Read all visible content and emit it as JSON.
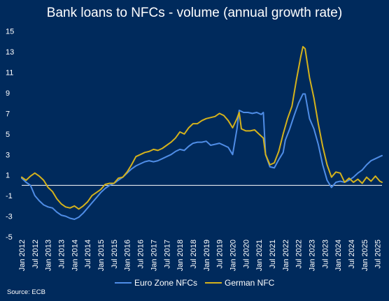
{
  "chart_data": {
    "type": "line",
    "title": "Bank loans to NFCs - volume (annual growth rate)",
    "source": "Source: ECB",
    "xlabel": "",
    "ylabel": "",
    "ylim": [
      -5,
      16
    ],
    "y_ticks": [
      "15",
      "13",
      "11",
      "9",
      "7",
      "5",
      "3",
      "1",
      "-1",
      "-3",
      "-5"
    ],
    "x_range": [
      "2012-01",
      "2025-09"
    ],
    "x_ticks": [
      "Jan 2012",
      "Jul 2012",
      "Jan 2013",
      "Jul 2013",
      "Jan 2014",
      "Jul 2014",
      "Jan 2015",
      "Jul 2015",
      "Jan 2016",
      "Jul 2016",
      "Jan 2017",
      "Jul 2017",
      "Jan 2018",
      "Jul 2018",
      "Jan 2019",
      "Jul 2019",
      "Jan 2020",
      "Jul 2020",
      "Jan 2021",
      "Jul 2021",
      "Jan 2022",
      "Jul 2022",
      "Jan 2023",
      "Jul 2023",
      "Jan 2024",
      "Jul 2024",
      "Jan 2025",
      "Jul 2025"
    ],
    "reference_line": 0,
    "legend_position": "bottom",
    "colors": {
      "Euro Zone NFCs": "#4f8de6",
      "German NFC": "#d4b21c",
      "reference_line": "#ffffff"
    },
    "series": [
      {
        "name": "Euro Zone NFCs",
        "points": [
          [
            "2012-01",
            0.7
          ],
          [
            "2012-03",
            0.3
          ],
          [
            "2012-05",
            0.0
          ],
          [
            "2012-07",
            -1.0
          ],
          [
            "2012-09",
            -1.5
          ],
          [
            "2012-11",
            -1.9
          ],
          [
            "2013-01",
            -2.1
          ],
          [
            "2013-03",
            -2.2
          ],
          [
            "2013-05",
            -2.6
          ],
          [
            "2013-07",
            -2.9
          ],
          [
            "2013-09",
            -3.0
          ],
          [
            "2013-11",
            -3.2
          ],
          [
            "2014-01",
            -3.3
          ],
          [
            "2014-03",
            -3.1
          ],
          [
            "2014-05",
            -2.7
          ],
          [
            "2014-07",
            -2.2
          ],
          [
            "2014-09",
            -1.7
          ],
          [
            "2014-11",
            -1.2
          ],
          [
            "2015-01",
            -0.7
          ],
          [
            "2015-03",
            -0.3
          ],
          [
            "2015-05",
            0.0
          ],
          [
            "2015-07",
            0.2
          ],
          [
            "2015-09",
            0.5
          ],
          [
            "2015-11",
            0.8
          ],
          [
            "2016-01",
            1.2
          ],
          [
            "2016-03",
            1.6
          ],
          [
            "2016-05",
            1.9
          ],
          [
            "2016-07",
            2.1
          ],
          [
            "2016-09",
            2.3
          ],
          [
            "2016-11",
            2.4
          ],
          [
            "2017-01",
            2.3
          ],
          [
            "2017-03",
            2.4
          ],
          [
            "2017-05",
            2.6
          ],
          [
            "2017-07",
            2.8
          ],
          [
            "2017-09",
            3.0
          ],
          [
            "2017-11",
            3.3
          ],
          [
            "2018-01",
            3.5
          ],
          [
            "2018-03",
            3.4
          ],
          [
            "2018-05",
            3.8
          ],
          [
            "2018-07",
            4.1
          ],
          [
            "2018-09",
            4.2
          ],
          [
            "2018-11",
            4.2
          ],
          [
            "2019-01",
            4.3
          ],
          [
            "2019-03",
            3.9
          ],
          [
            "2019-05",
            4.0
          ],
          [
            "2019-07",
            4.1
          ],
          [
            "2019-09",
            3.9
          ],
          [
            "2019-11",
            3.7
          ],
          [
            "2020-01",
            3.0
          ],
          [
            "2020-03",
            5.5
          ],
          [
            "2020-04",
            7.3
          ],
          [
            "2020-06",
            7.1
          ],
          [
            "2020-08",
            7.1
          ],
          [
            "2020-10",
            7.0
          ],
          [
            "2020-12",
            7.1
          ],
          [
            "2021-02",
            6.9
          ],
          [
            "2021-03",
            7.1
          ],
          [
            "2021-04",
            3.0
          ],
          [
            "2021-06",
            1.8
          ],
          [
            "2021-08",
            1.7
          ],
          [
            "2021-10",
            2.5
          ],
          [
            "2021-12",
            3.2
          ],
          [
            "2022-01",
            4.4
          ],
          [
            "2022-03",
            5.5
          ],
          [
            "2022-05",
            6.8
          ],
          [
            "2022-07",
            8.0
          ],
          [
            "2022-09",
            8.9
          ],
          [
            "2022-10",
            8.9
          ],
          [
            "2022-12",
            6.5
          ],
          [
            "2023-02",
            5.5
          ],
          [
            "2023-04",
            4.0
          ],
          [
            "2023-06",
            2.0
          ],
          [
            "2023-08",
            0.5
          ],
          [
            "2023-10",
            -0.2
          ],
          [
            "2023-12",
            0.3
          ],
          [
            "2024-02",
            0.4
          ],
          [
            "2024-04",
            0.3
          ],
          [
            "2024-06",
            0.5
          ],
          [
            "2024-08",
            0.8
          ],
          [
            "2024-10",
            1.2
          ],
          [
            "2024-12",
            1.5
          ],
          [
            "2025-02",
            2.0
          ],
          [
            "2025-04",
            2.4
          ],
          [
            "2025-06",
            2.6
          ],
          [
            "2025-08",
            2.8
          ],
          [
            "2025-09",
            2.9
          ]
        ]
      },
      {
        "name": "German NFC",
        "points": [
          [
            "2012-01",
            0.8
          ],
          [
            "2012-03",
            0.5
          ],
          [
            "2012-05",
            0.9
          ],
          [
            "2012-07",
            1.2
          ],
          [
            "2012-09",
            0.9
          ],
          [
            "2012-11",
            0.5
          ],
          [
            "2013-01",
            -0.2
          ],
          [
            "2013-03",
            -0.6
          ],
          [
            "2013-05",
            -1.3
          ],
          [
            "2013-07",
            -1.8
          ],
          [
            "2013-09",
            -2.1
          ],
          [
            "2013-11",
            -2.2
          ],
          [
            "2014-01",
            -2.0
          ],
          [
            "2014-03",
            -2.3
          ],
          [
            "2014-05",
            -2.0
          ],
          [
            "2014-07",
            -1.6
          ],
          [
            "2014-09",
            -1.0
          ],
          [
            "2014-11",
            -0.7
          ],
          [
            "2015-01",
            -0.4
          ],
          [
            "2015-03",
            0.1
          ],
          [
            "2015-05",
            0.2
          ],
          [
            "2015-07",
            0.2
          ],
          [
            "2015-09",
            0.7
          ],
          [
            "2015-11",
            0.8
          ],
          [
            "2016-01",
            1.3
          ],
          [
            "2016-03",
            2.0
          ],
          [
            "2016-05",
            2.8
          ],
          [
            "2016-07",
            3.0
          ],
          [
            "2016-09",
            3.2
          ],
          [
            "2016-11",
            3.3
          ],
          [
            "2017-01",
            3.5
          ],
          [
            "2017-03",
            3.4
          ],
          [
            "2017-05",
            3.6
          ],
          [
            "2017-07",
            3.9
          ],
          [
            "2017-09",
            4.2
          ],
          [
            "2017-11",
            4.6
          ],
          [
            "2018-01",
            5.2
          ],
          [
            "2018-03",
            5.0
          ],
          [
            "2018-05",
            5.6
          ],
          [
            "2018-07",
            6.0
          ],
          [
            "2018-09",
            6.0
          ],
          [
            "2018-11",
            6.3
          ],
          [
            "2019-01",
            6.5
          ],
          [
            "2019-03",
            6.6
          ],
          [
            "2019-05",
            6.7
          ],
          [
            "2019-07",
            7.0
          ],
          [
            "2019-09",
            6.8
          ],
          [
            "2019-11",
            6.3
          ],
          [
            "2020-01",
            5.6
          ],
          [
            "2020-03",
            6.5
          ],
          [
            "2020-04",
            7.1
          ],
          [
            "2020-05",
            5.5
          ],
          [
            "2020-07",
            5.3
          ],
          [
            "2020-09",
            5.3
          ],
          [
            "2020-11",
            5.4
          ],
          [
            "2021-01",
            5.0
          ],
          [
            "2021-03",
            4.6
          ],
          [
            "2021-04",
            3.0
          ],
          [
            "2021-06",
            2.0
          ],
          [
            "2021-08",
            2.2
          ],
          [
            "2021-10",
            3.3
          ],
          [
            "2021-12",
            5.0
          ],
          [
            "2022-02",
            6.5
          ],
          [
            "2022-04",
            7.7
          ],
          [
            "2022-06",
            10.2
          ],
          [
            "2022-08",
            12.5
          ],
          [
            "2022-09",
            13.5
          ],
          [
            "2022-10",
            13.3
          ],
          [
            "2022-12",
            10.5
          ],
          [
            "2023-02",
            8.5
          ],
          [
            "2023-04",
            6.0
          ],
          [
            "2023-06",
            3.8
          ],
          [
            "2023-08",
            2.0
          ],
          [
            "2023-10",
            0.8
          ],
          [
            "2023-12",
            1.3
          ],
          [
            "2024-02",
            1.2
          ],
          [
            "2024-04",
            0.3
          ],
          [
            "2024-06",
            0.7
          ],
          [
            "2024-08",
            0.3
          ],
          [
            "2024-10",
            0.6
          ],
          [
            "2024-12",
            0.2
          ],
          [
            "2025-02",
            0.8
          ],
          [
            "2025-04",
            0.4
          ],
          [
            "2025-06",
            0.9
          ],
          [
            "2025-08",
            0.4
          ],
          [
            "2025-09",
            0.3
          ]
        ]
      }
    ]
  }
}
